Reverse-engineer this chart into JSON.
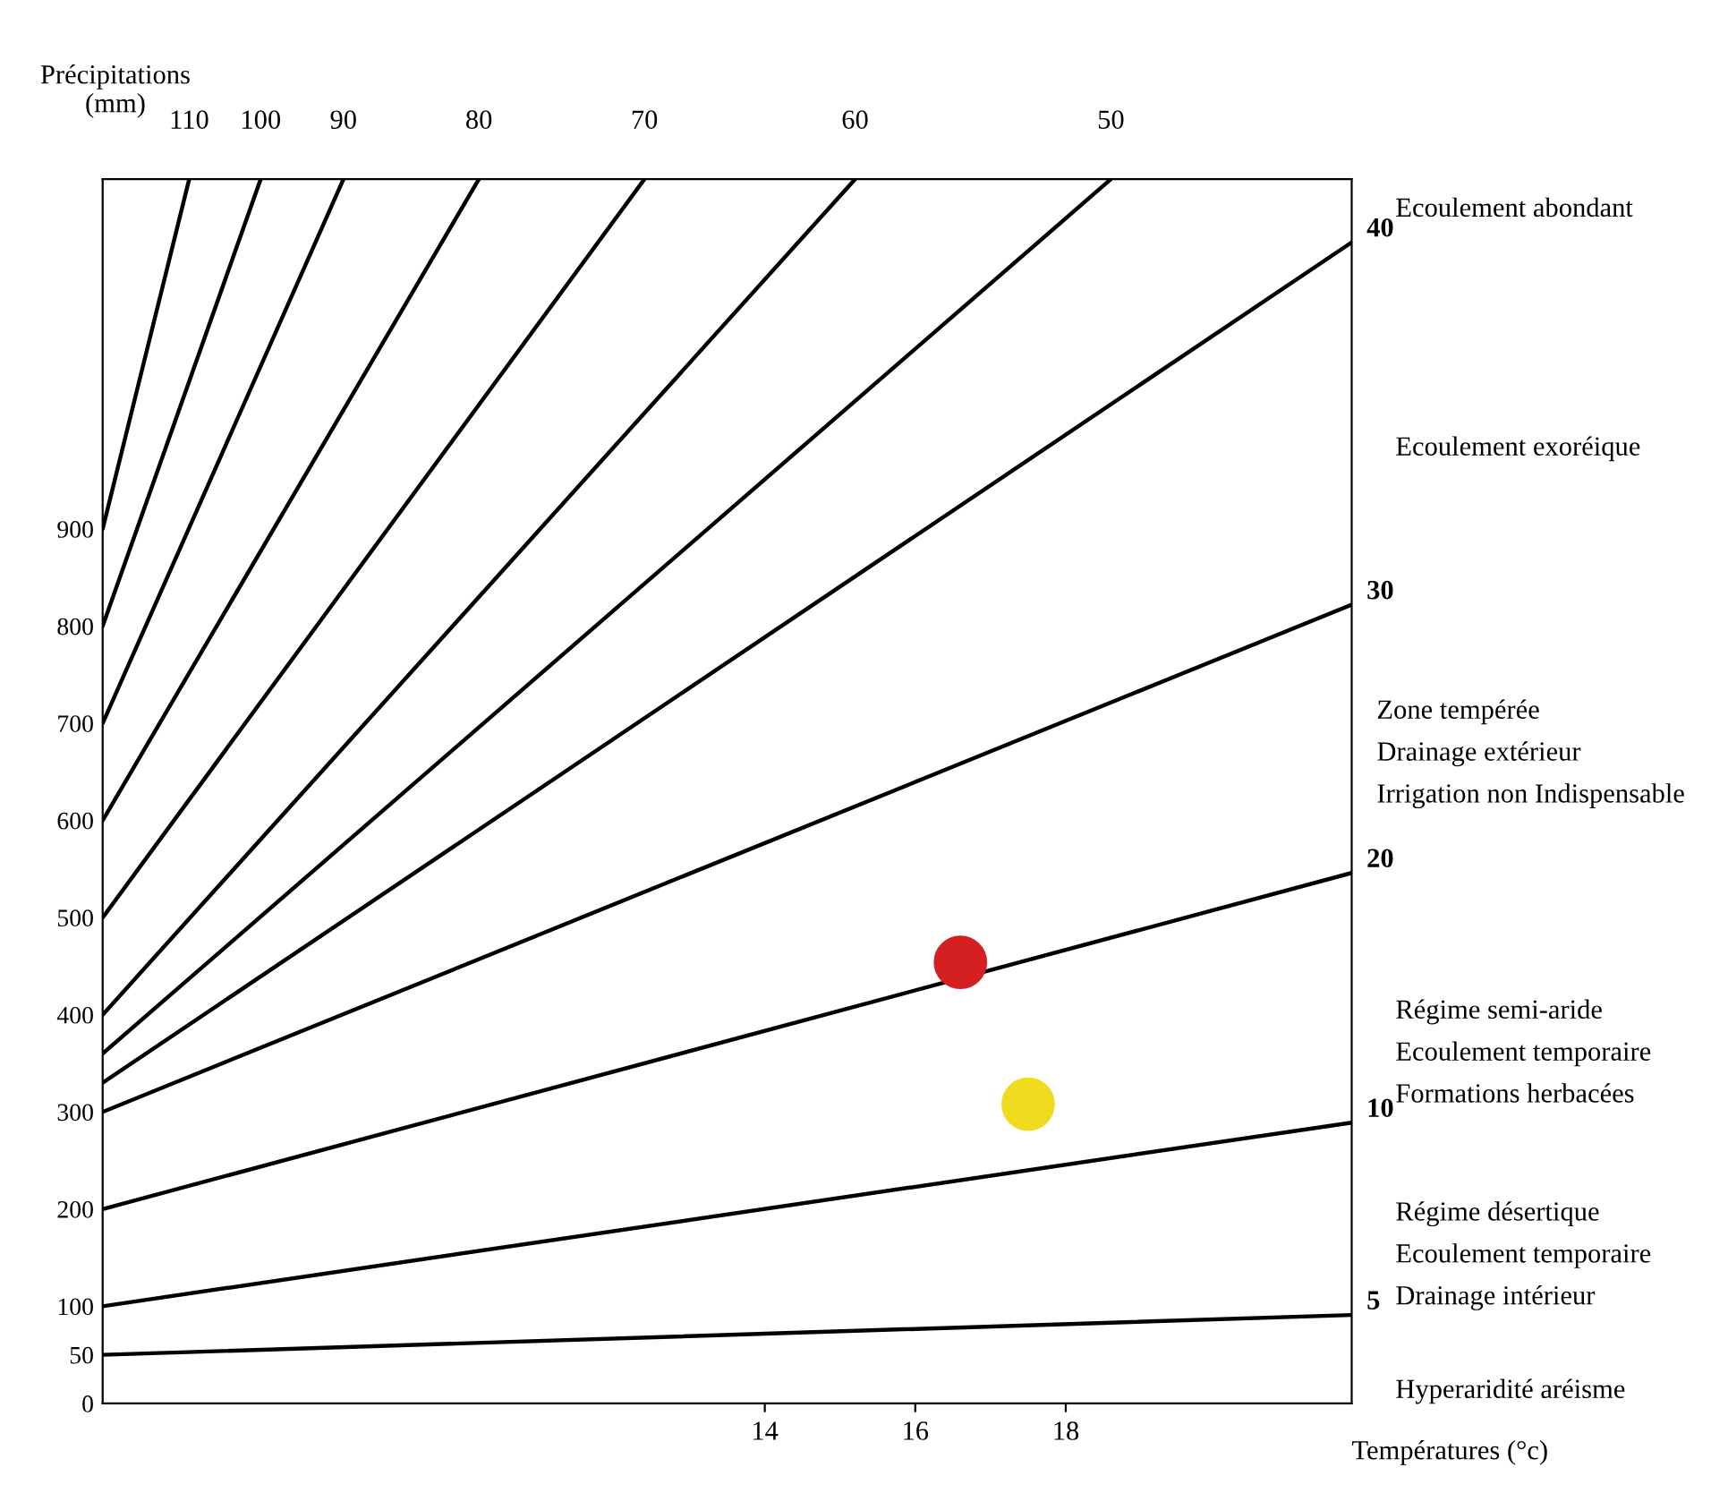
{
  "chart_data": {
    "type": "line",
    "xlabel": "Températures (°c)",
    "ylabel": "Précipitations\n(mm)",
    "xlim": [
      5.2,
      21.8
    ],
    "ylim": [
      0,
      1260
    ],
    "xticks": [
      14,
      16,
      18
    ],
    "yticks": [
      0,
      50,
      100,
      200,
      300,
      400,
      500,
      600,
      700,
      800,
      900
    ],
    "grid": false,
    "legend": false,
    "marker": "none",
    "line_style": "solid",
    "series": [
      {
        "name": "110",
        "color": "#000000",
        "x": [
          5.2,
          6.35
        ],
        "values": [
          900,
          1260
        ]
      },
      {
        "name": "100",
        "color": "#000000",
        "x": [
          5.2,
          7.3
        ],
        "values": [
          800,
          1260
        ]
      },
      {
        "name": "90",
        "color": "#000000",
        "x": [
          5.2,
          8.4
        ],
        "values": [
          700,
          1260
        ]
      },
      {
        "name": "80",
        "color": "#000000",
        "x": [
          5.2,
          10.2
        ],
        "values": [
          600,
          1260
        ]
      },
      {
        "name": "70",
        "color": "#000000",
        "x": [
          5.2,
          12.4
        ],
        "values": [
          500,
          1260
        ]
      },
      {
        "name": "60",
        "color": "#000000",
        "x": [
          5.2,
          15.2
        ],
        "values": [
          400,
          1260
        ]
      },
      {
        "name": "50",
        "color": "#000000",
        "x": [
          5.2,
          18.6
        ],
        "values": [
          360,
          1260
        ]
      },
      {
        "name": "40",
        "color": "#000000",
        "x": [
          5.2,
          21.8
        ],
        "values": [
          330,
          1195
        ]
      },
      {
        "name": "30",
        "color": "#000000",
        "x": [
          5.2,
          21.8
        ],
        "values": [
          300,
          822
        ]
      },
      {
        "name": "20",
        "color": "#000000",
        "x": [
          5.2,
          21.8
        ],
        "values": [
          200,
          546
        ]
      },
      {
        "name": "10",
        "color": "#000000",
        "x": [
          5.2,
          21.8
        ],
        "values": [
          100,
          289
        ]
      },
      {
        "name": "5",
        "color": "#000000",
        "x": [
          5.2,
          21.8
        ],
        "values": [
          50,
          91
        ]
      },
      {
        "type": "scatter",
        "marker": "circle",
        "color": "#d42020",
        "x": [
          16.6
        ],
        "values": [
          454
        ]
      },
      {
        "type": "scatter",
        "marker": "circle",
        "color": "#f0dc1e",
        "x": [
          17.5
        ],
        "values": [
          308
        ]
      }
    ],
    "annotations": [
      "Ecoulement abondant",
      "Ecoulement exoréique",
      "Zone tempérée\nDrainage extérieur\nIrrigation non Indispensable",
      "Régime semi-aride\nEcoulement temporaire\nFormations herbacées",
      "Régime désertique\nEcoulement temporaire\nDrainage intérieur",
      "Hyperaridité aréisme"
    ]
  }
}
